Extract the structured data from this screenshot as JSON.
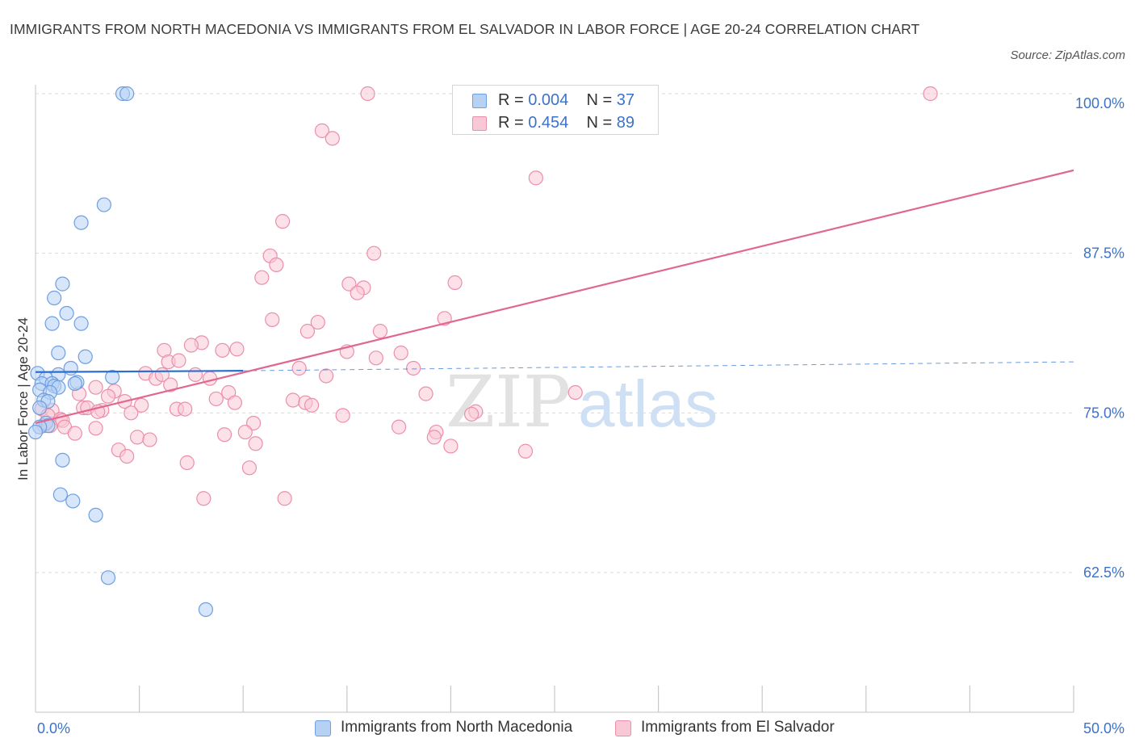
{
  "header": {
    "title": "IMMIGRANTS FROM NORTH MACEDONIA VS IMMIGRANTS FROM EL SALVADOR IN LABOR FORCE | AGE 20-24 CORRELATION CHART",
    "source": "Source: ZipAtlas.com"
  },
  "colors": {
    "blue_fill": "#b7d1f5",
    "blue_stroke": "#6e9fe0",
    "blue_line": "#2c6fce",
    "pink_fill": "#f9c8d6",
    "pink_stroke": "#eb8fab",
    "pink_line": "#e0688f",
    "axis_label": "#3d72c7",
    "grid": "#d9d9d9"
  },
  "legend": {
    "series1": {
      "r_label": "R = ",
      "r_value": "0.004",
      "n_label": "N = ",
      "n_value": "37"
    },
    "series2": {
      "r_label": "R = ",
      "r_value": "0.454",
      "n_label": "N = ",
      "n_value": "89"
    }
  },
  "bottom_legend": {
    "series1": "Immigrants from North Macedonia",
    "series2": "Immigrants from El Salvador"
  },
  "watermark": {
    "zip": "ZIP",
    "atlas": "atlas"
  },
  "chart_data": {
    "type": "scatter",
    "title": "IMMIGRANTS FROM NORTH MACEDONIA VS IMMIGRANTS FROM EL SALVADOR IN LABOR FORCE | AGE 20-24 CORRELATION CHART",
    "xlabel": "",
    "ylabel": "In Labor Force | Age 20-24",
    "xlim": [
      0,
      50
    ],
    "ylim": [
      50,
      101.2
    ],
    "x_tick_labels": [
      {
        "value": 0,
        "label": "0.0%"
      },
      {
        "value": 50,
        "label": "50.0%"
      }
    ],
    "y_ticks": [
      {
        "value": 100,
        "label": "100.0%"
      },
      {
        "value": 87.5,
        "label": "87.5%"
      },
      {
        "value": 75,
        "label": "75.0%"
      },
      {
        "value": 62.5,
        "label": "62.5%"
      }
    ],
    "x_minor_ticks": [
      5,
      10,
      15,
      20,
      25,
      30,
      35,
      40,
      45,
      50
    ],
    "series": [
      {
        "name": "Immigrants from North Macedonia",
        "R": 0.004,
        "N": 37,
        "trend": {
          "x0": 0,
          "y0": 78.2,
          "x1": 10,
          "y1": 78.3,
          "dashed_to": 50,
          "dashed_y": 79.0
        },
        "points": [
          [
            4.2,
            100.0
          ],
          [
            4.4,
            100.0
          ],
          [
            3.3,
            91.3
          ],
          [
            2.2,
            89.9
          ],
          [
            1.3,
            85.1
          ],
          [
            0.9,
            84.0
          ],
          [
            1.5,
            82.8
          ],
          [
            2.2,
            82.0
          ],
          [
            0.8,
            82.0
          ],
          [
            1.1,
            79.7
          ],
          [
            2.4,
            79.4
          ],
          [
            1.7,
            78.5
          ],
          [
            0.1,
            78.1
          ],
          [
            1.1,
            78.0
          ],
          [
            0.5,
            77.7
          ],
          [
            3.7,
            77.8
          ],
          [
            0.3,
            77.3
          ],
          [
            0.8,
            77.3
          ],
          [
            2.0,
            77.4
          ],
          [
            1.9,
            77.3
          ],
          [
            0.9,
            77.1
          ],
          [
            1.1,
            77.0
          ],
          [
            0.2,
            76.8
          ],
          [
            0.7,
            76.6
          ],
          [
            0.4,
            76.0
          ],
          [
            0.6,
            75.9
          ],
          [
            0.2,
            75.4
          ],
          [
            0.5,
            74.2
          ],
          [
            0.6,
            74.0
          ],
          [
            0.2,
            73.9
          ],
          [
            0.0,
            73.5
          ],
          [
            1.3,
            71.3
          ],
          [
            1.2,
            68.6
          ],
          [
            1.8,
            68.1
          ],
          [
            2.9,
            67.0
          ],
          [
            3.5,
            62.1
          ],
          [
            8.2,
            59.6
          ]
        ]
      },
      {
        "name": "Immigrants from El Salvador",
        "R": 0.454,
        "N": 89,
        "trend": {
          "x0": 0,
          "y0": 74.2,
          "x1": 50,
          "y1": 94.0
        },
        "points": [
          [
            16.0,
            100.0
          ],
          [
            43.1,
            100.0
          ],
          [
            13.8,
            97.1
          ],
          [
            14.3,
            96.5
          ],
          [
            24.1,
            93.4
          ],
          [
            11.9,
            90.0
          ],
          [
            16.3,
            87.5
          ],
          [
            11.3,
            87.3
          ],
          [
            11.6,
            86.6
          ],
          [
            10.9,
            85.6
          ],
          [
            20.2,
            85.2
          ],
          [
            15.1,
            85.1
          ],
          [
            15.8,
            84.8
          ],
          [
            15.5,
            84.4
          ],
          [
            11.4,
            82.3
          ],
          [
            13.6,
            82.1
          ],
          [
            19.7,
            82.4
          ],
          [
            13.1,
            81.4
          ],
          [
            16.6,
            81.4
          ],
          [
            8.0,
            80.5
          ],
          [
            7.5,
            80.3
          ],
          [
            6.2,
            79.9
          ],
          [
            9.0,
            79.9
          ],
          [
            9.7,
            80.0
          ],
          [
            15.0,
            79.8
          ],
          [
            17.6,
            79.7
          ],
          [
            6.4,
            79.0
          ],
          [
            6.9,
            79.1
          ],
          [
            16.4,
            79.3
          ],
          [
            5.3,
            78.1
          ],
          [
            5.8,
            77.7
          ],
          [
            6.1,
            78.0
          ],
          [
            7.7,
            78.0
          ],
          [
            8.4,
            77.7
          ],
          [
            12.7,
            78.5
          ],
          [
            14.0,
            77.9
          ],
          [
            18.2,
            78.5
          ],
          [
            6.5,
            77.2
          ],
          [
            2.9,
            77.0
          ],
          [
            3.8,
            76.7
          ],
          [
            9.3,
            76.6
          ],
          [
            18.8,
            76.5
          ],
          [
            26.0,
            76.6
          ],
          [
            8.7,
            76.1
          ],
          [
            3.5,
            76.3
          ],
          [
            2.1,
            76.5
          ],
          [
            4.3,
            75.9
          ],
          [
            9.6,
            75.8
          ],
          [
            12.4,
            76.0
          ],
          [
            13.0,
            75.8
          ],
          [
            13.3,
            75.6
          ],
          [
            5.1,
            75.6
          ],
          [
            2.3,
            75.4
          ],
          [
            2.5,
            75.4
          ],
          [
            6.8,
            75.3
          ],
          [
            7.2,
            75.3
          ],
          [
            0.3,
            75.3
          ],
          [
            3.2,
            75.2
          ],
          [
            3.0,
            75.1
          ],
          [
            0.8,
            75.2
          ],
          [
            4.6,
            75.0
          ],
          [
            21.2,
            75.1
          ],
          [
            21.0,
            74.9
          ],
          [
            14.8,
            74.8
          ],
          [
            0.6,
            74.8
          ],
          [
            1.2,
            74.5
          ],
          [
            1.3,
            74.4
          ],
          [
            10.5,
            74.2
          ],
          [
            0.4,
            74.0
          ],
          [
            0.7,
            74.0
          ],
          [
            1.4,
            73.9
          ],
          [
            2.9,
            73.8
          ],
          [
            17.5,
            73.9
          ],
          [
            10.1,
            73.5
          ],
          [
            1.9,
            73.4
          ],
          [
            19.3,
            73.5
          ],
          [
            19.2,
            73.1
          ],
          [
            4.9,
            73.1
          ],
          [
            5.5,
            72.9
          ],
          [
            10.6,
            72.6
          ],
          [
            9.1,
            73.3
          ],
          [
            20.0,
            72.4
          ],
          [
            23.6,
            72.0
          ],
          [
            4.0,
            72.1
          ],
          [
            4.4,
            71.6
          ],
          [
            7.3,
            71.1
          ],
          [
            10.3,
            70.7
          ],
          [
            8.1,
            68.3
          ],
          [
            12.0,
            68.3
          ]
        ]
      }
    ]
  }
}
